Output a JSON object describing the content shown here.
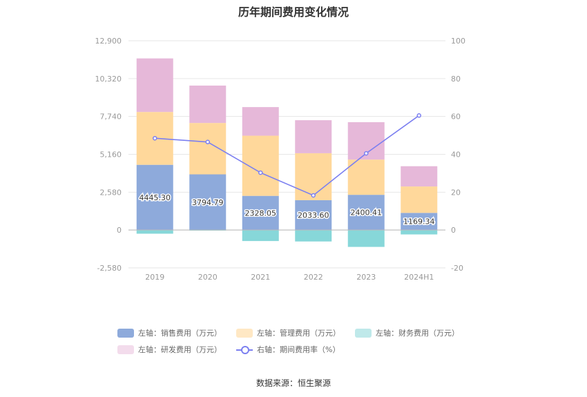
{
  "title": "历年期间费用变化情况",
  "source": "数据来源：恒生聚源",
  "chart_data": {
    "type": "bar",
    "stacked": true,
    "categories": [
      "2019",
      "2020",
      "2021",
      "2022",
      "2023",
      "2024H1"
    ],
    "left_axis": {
      "min": -2580,
      "max": 12900,
      "ticks": [
        "12,900",
        "10,320",
        "7,740",
        "5,160",
        "2,580",
        "0",
        "-2,580"
      ],
      "tick_values": [
        12900,
        10320,
        7740,
        5160,
        2580,
        0,
        -2580
      ]
    },
    "right_axis": {
      "min": -20,
      "max": 100,
      "ticks": [
        "100",
        "80",
        "60",
        "40",
        "20",
        "0",
        "-20"
      ],
      "tick_values": [
        100,
        80,
        60,
        40,
        20,
        0,
        -20
      ]
    },
    "series": [
      {
        "name": "左轴：销售费用（万元）",
        "axis": "left",
        "color": "#8eaadb",
        "values": [
          4445.3,
          3794.79,
          2328.05,
          2033.6,
          2400.41,
          1169.34
        ],
        "labels": [
          "4445.30",
          "3794.79",
          "2328.05",
          "2033.60",
          "2400.41",
          "1169.34"
        ]
      },
      {
        "name": "左轴：管理费用（万元）",
        "axis": "left",
        "color": "#ffd89b",
        "values": [
          3600,
          3500,
          4100,
          3200,
          2400,
          1800
        ]
      },
      {
        "name": "左轴：财务费用（万元）",
        "axis": "left",
        "color": "#87d7d9",
        "values": [
          -250,
          -40,
          -750,
          -780,
          -1150,
          -300
        ]
      },
      {
        "name": "左轴：研发费用（万元）",
        "axis": "left",
        "color": "#e6b8d9",
        "values": [
          3650,
          2550,
          1950,
          2250,
          2550,
          1380
        ]
      },
      {
        "name": "右轴：期间费用率（%）",
        "axis": "right",
        "type": "line",
        "color": "#7b7ff0",
        "values": [
          48.5,
          46.5,
          30.3,
          18.3,
          40.5,
          60.5
        ]
      }
    ],
    "legend_position": "bottom",
    "grid": true
  },
  "legend": [
    {
      "label": "左轴：销售费用（万元）",
      "color": "#8eaadb",
      "kind": "box"
    },
    {
      "label": "左轴：管理费用（万元）",
      "color": "#ffe8c4",
      "kind": "box"
    },
    {
      "label": "左轴：财务费用（万元）",
      "color": "#bfe9ea",
      "kind": "box"
    },
    {
      "label": "左轴：研发费用（万元）",
      "color": "#f3dcec",
      "kind": "box"
    },
    {
      "label": "右轴：期间费用率（%）",
      "color": "#7b7ff0",
      "kind": "line"
    }
  ]
}
